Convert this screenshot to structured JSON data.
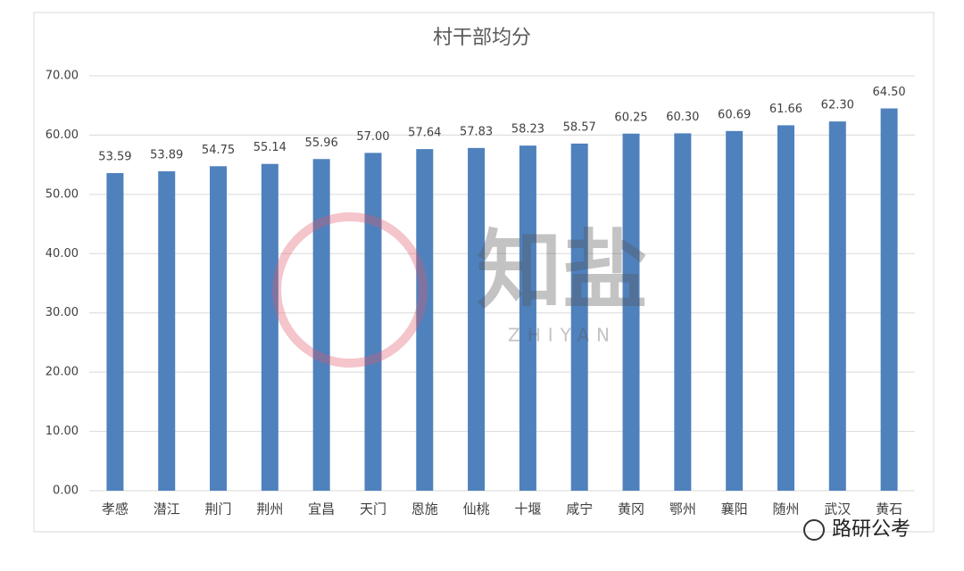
{
  "chart_data": {
    "type": "bar",
    "title": "村干部均分",
    "categories": [
      "孝感",
      "潜江",
      "荆门",
      "荆州",
      "宜昌",
      "天门",
      "恩施",
      "仙桃",
      "十堰",
      "咸宁",
      "黄冈",
      "鄂州",
      "襄阳",
      "随州",
      "武汉",
      "黄石"
    ],
    "values": [
      53.59,
      53.89,
      54.75,
      55.14,
      55.96,
      57.0,
      57.64,
      57.83,
      58.23,
      58.57,
      60.25,
      60.3,
      60.69,
      61.66,
      62.3,
      64.5
    ],
    "value_labels": [
      "53.59",
      "53.89",
      "54.75",
      "55.14",
      "55.96",
      "57.00",
      "57.64",
      "57.83",
      "58.23",
      "58.57",
      "60.25",
      "60.30",
      "60.69",
      "61.66",
      "62.30",
      "64.50"
    ],
    "color": "#4f81bd",
    "ylim": [
      0,
      70
    ],
    "yticks": [
      {
        "value": 0,
        "label": "0.00"
      },
      {
        "value": 10,
        "label": "10.00"
      },
      {
        "value": 20,
        "label": "20.00"
      },
      {
        "value": 30,
        "label": "30.00"
      },
      {
        "value": 40,
        "label": "40.00"
      },
      {
        "value": 50,
        "label": "50.00"
      },
      {
        "value": 60,
        "label": "60.00"
      },
      {
        "value": 70,
        "label": "70.00"
      }
    ],
    "grid": true,
    "annotations": [
      "知盐",
      "ZHIYAN",
      "路研公考"
    ]
  }
}
